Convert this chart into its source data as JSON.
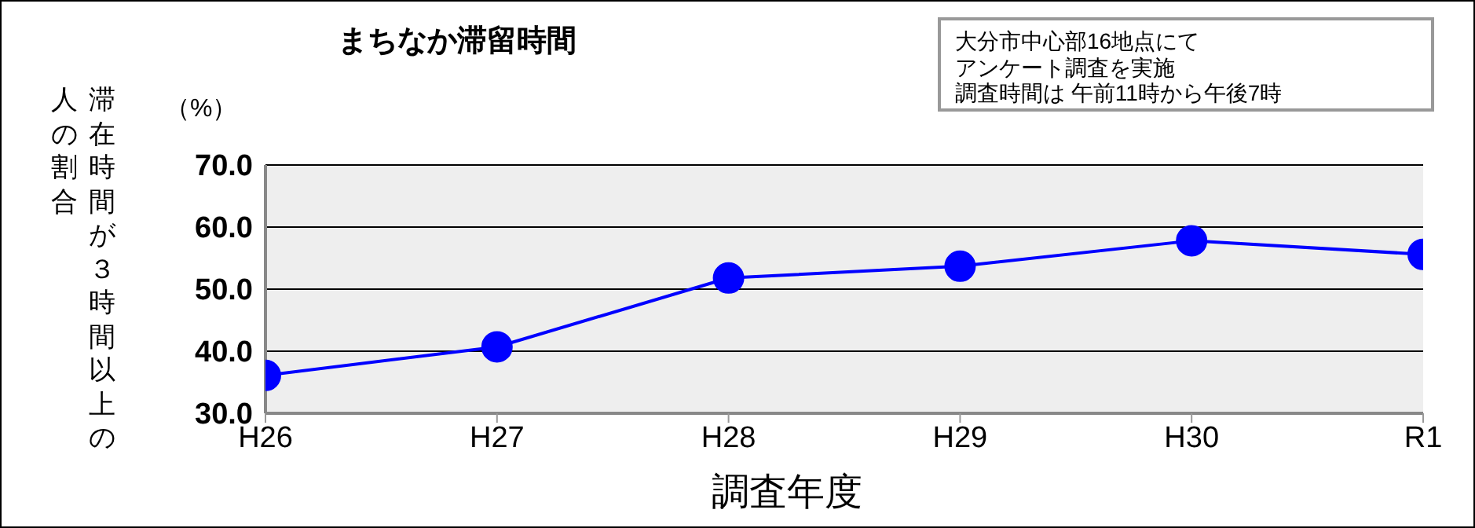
{
  "chart_data": {
    "type": "line",
    "title": "まちなか滞留時間",
    "xlabel": "調査年度",
    "ylabel": "滞在時間が３時間以上の人の割合",
    "annotations": [
      "（%）",
      "大分市中心部16地点にて",
      "アンケート調査を実施",
      "調査時間は 午前11時から午後7時"
    ],
    "categories": [
      "H26",
      "H27",
      "H28",
      "H29",
      "H30",
      "R1"
    ],
    "series": [
      {
        "color": "#0000ff",
        "values": [
          36.1,
          40.7,
          51.8,
          53.7,
          57.8,
          55.6
        ]
      }
    ],
    "ylim": [
      30,
      70
    ],
    "yticks": [
      {
        "value": 30,
        "label": "30.0"
      },
      {
        "value": 40,
        "label": "40.0"
      },
      {
        "value": 50,
        "label": "50.0"
      },
      {
        "value": 60,
        "label": "60.0"
      },
      {
        "value": 70,
        "label": "70.0"
      }
    ],
    "grid": "y",
    "marker": "circle",
    "line_style": "solid"
  }
}
